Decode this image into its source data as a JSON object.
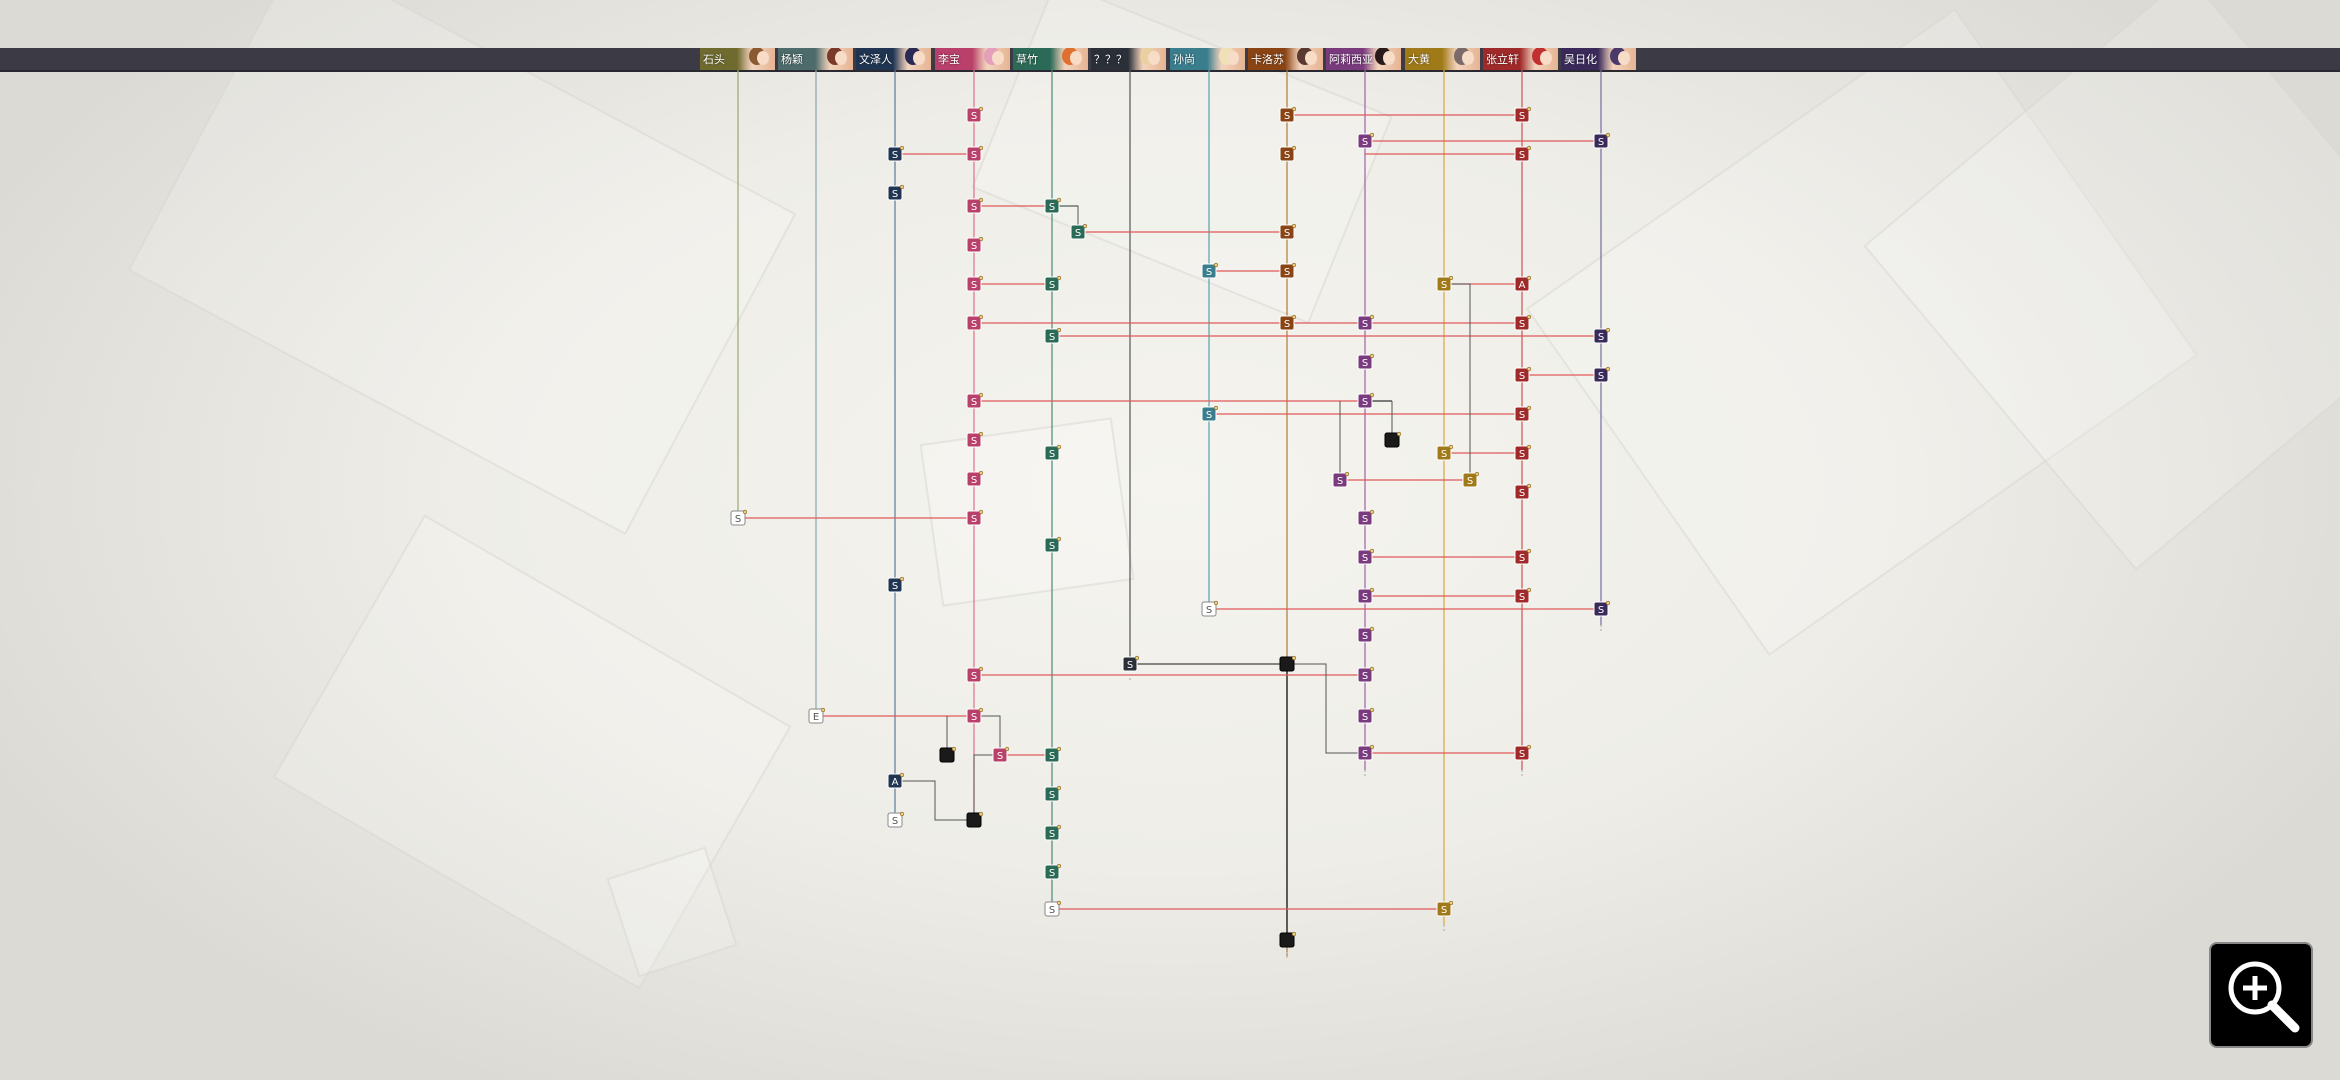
{
  "characters": [
    {
      "name": "石头",
      "color": "#6f6a2e",
      "hair": "#8a5a30"
    },
    {
      "name": "杨颖",
      "color": "#4c6b6a",
      "hair": "#7a3a2a"
    },
    {
      "name": "文泽人",
      "color": "#1f3552",
      "hair": "#2a2a55"
    },
    {
      "name": "李宝",
      "color": "#b8406a",
      "hair": "#e4a0b8"
    },
    {
      "name": "草竹",
      "color": "#2b6a56",
      "hair": "#e07030"
    },
    {
      "name": "？？？",
      "color": "#2a2f38",
      "hair": "#e8d0a0"
    },
    {
      "name": "孙尚",
      "color": "#3a7e8e",
      "hair": "#f0e0b8"
    },
    {
      "name": "卡洛苏",
      "color": "#8a4414",
      "hair": "#5a3a30"
    },
    {
      "name": "阿莉西亚",
      "color": "#7a3a7e",
      "hair": "#2a1a1a"
    },
    {
      "name": "大黄",
      "color": "#a07a18",
      "hair": "#7a6a6a"
    },
    {
      "name": "张立轩",
      "color": "#a02a2a",
      "hair": "#c03030"
    },
    {
      "name": "吴日化",
      "color": "#3a2a5a",
      "hair": "#4a3a6a"
    }
  ],
  "node_labels": {
    "story": "S",
    "affection": "A",
    "ending": "E"
  },
  "colors": {
    "link": "#e05a5a",
    "end_node": "#1a1a1a",
    "blank_node": "#ffffff"
  },
  "zoom_icon": "zoom-in-icon"
}
